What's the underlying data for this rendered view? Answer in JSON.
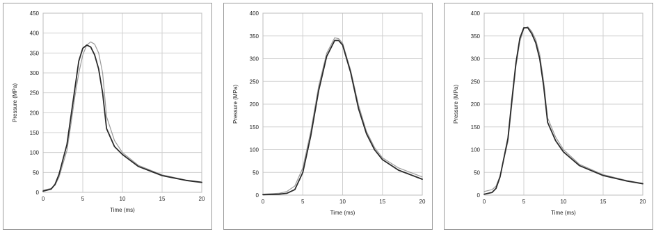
{
  "chart_data": [
    {
      "type": "line",
      "xlabel": "Time (ms)",
      "ylabel": "Pressure (MPa)",
      "xlim": [
        0,
        20
      ],
      "ylim": [
        0,
        450
      ],
      "xticks": [
        "0",
        "5",
        "10",
        "15",
        "20"
      ],
      "yticks": [
        "0",
        "50",
        "100",
        "150",
        "200",
        "250",
        "300",
        "350",
        "400",
        "450"
      ],
      "grid": true,
      "series": [
        {
          "color": "#2b2b2b",
          "x": [
            0,
            1,
            1.5,
            2,
            3,
            3.5,
            4,
            4.5,
            5,
            5.5,
            6,
            6.5,
            7,
            7.5,
            8,
            9,
            10,
            12,
            15,
            18,
            20
          ],
          "y": [
            3,
            8,
            20,
            45,
            120,
            190,
            260,
            330,
            362,
            370,
            365,
            345,
            310,
            250,
            160,
            115,
            95,
            65,
            42,
            30,
            25
          ]
        },
        {
          "color": "#9a9a9a",
          "x": [
            0,
            1,
            1.5,
            2,
            3,
            3.5,
            4,
            4.5,
            5,
            5.5,
            6,
            6.5,
            7,
            7.5,
            8,
            9,
            10,
            12,
            15,
            18,
            20
          ],
          "y": [
            5,
            10,
            18,
            38,
            105,
            170,
            240,
            300,
            345,
            370,
            378,
            372,
            350,
            300,
            190,
            130,
            100,
            68,
            44,
            31,
            26
          ]
        }
      ]
    },
    {
      "type": "line",
      "xlabel": "Time (ms)",
      "ylabel": "Pressure (MPa)",
      "xlim": [
        0,
        20
      ],
      "ylim": [
        0,
        400
      ],
      "xticks": [
        "0",
        "5",
        "10",
        "15",
        "20"
      ],
      "yticks": [
        "0",
        "50",
        "100",
        "150",
        "200",
        "250",
        "300",
        "350",
        "400"
      ],
      "grid": true,
      "series": [
        {
          "color": "#2b2b2b",
          "x": [
            0,
            2,
            3,
            4,
            5,
            6,
            7,
            8,
            9,
            9.5,
            10,
            11,
            12,
            13,
            14,
            15,
            17,
            20
          ],
          "y": [
            1,
            2,
            4,
            12,
            50,
            130,
            230,
            305,
            340,
            340,
            330,
            270,
            190,
            135,
            100,
            78,
            55,
            35
          ]
        },
        {
          "color": "#9a9a9a",
          "x": [
            0,
            2,
            3,
            4,
            5,
            6,
            7,
            8,
            9,
            9.5,
            10,
            11,
            12,
            13,
            14,
            15,
            17,
            20
          ],
          "y": [
            2,
            4,
            8,
            20,
            60,
            140,
            240,
            312,
            346,
            344,
            334,
            275,
            198,
            140,
            105,
            82,
            60,
            40
          ]
        }
      ]
    },
    {
      "type": "line",
      "xlabel": "Time (ms)",
      "ylabel": "Pressure (MPa)",
      "xlim": [
        0,
        20
      ],
      "ylim": [
        0,
        400
      ],
      "xticks": [
        "0",
        "5",
        "10",
        "15",
        "20"
      ],
      "yticks": [
        "0",
        "50",
        "100",
        "150",
        "200",
        "250",
        "300",
        "350",
        "400"
      ],
      "grid": true,
      "series": [
        {
          "color": "#2b2b2b",
          "x": [
            0,
            1,
            1.5,
            2,
            3,
            3.5,
            4,
            4.5,
            5,
            5.5,
            6,
            6.5,
            7,
            7.5,
            8,
            9,
            10,
            12,
            15,
            18,
            20
          ],
          "y": [
            2,
            6,
            15,
            40,
            125,
            210,
            290,
            345,
            368,
            368,
            355,
            335,
            300,
            240,
            160,
            120,
            95,
            65,
            43,
            31,
            25
          ]
        },
        {
          "color": "#9a9a9a",
          "x": [
            0,
            1,
            1.5,
            2,
            3,
            3.5,
            4,
            4.5,
            5,
            5.5,
            6,
            6.5,
            7,
            7.5,
            8,
            9,
            10,
            12,
            15,
            18,
            20
          ],
          "y": [
            8,
            12,
            20,
            42,
            118,
            200,
            282,
            338,
            366,
            370,
            360,
            342,
            310,
            250,
            170,
            128,
            100,
            68,
            45,
            32,
            26
          ]
        }
      ]
    }
  ]
}
